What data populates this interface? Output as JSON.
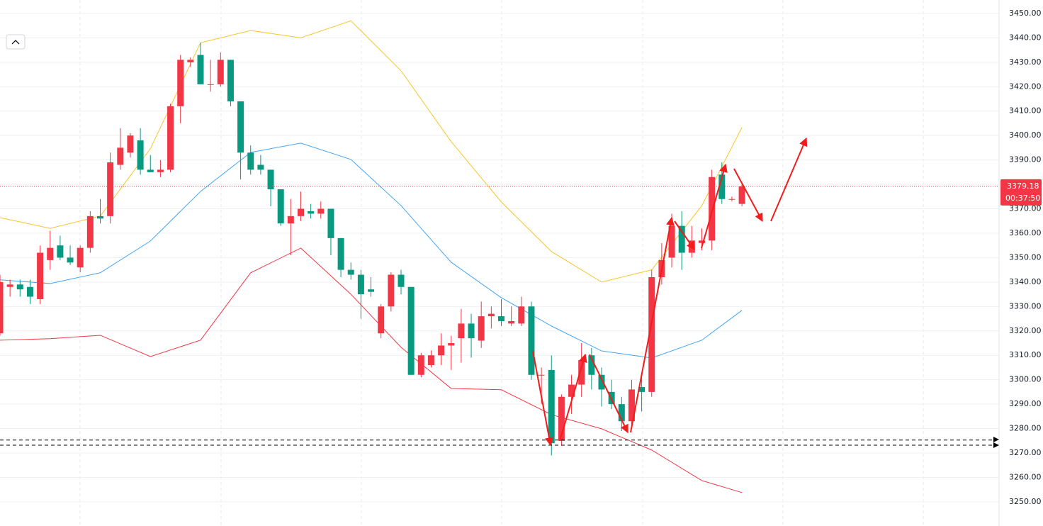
{
  "chart_data": {
    "type": "candlestick",
    "ylim": [
      3240.1,
      3455.5
    ],
    "yticks": [
      {
        "value": 3250,
        "label": "3250.00"
      },
      {
        "value": 3260,
        "label": "3260.00"
      },
      {
        "value": 3270,
        "label": "3270.00"
      },
      {
        "value": 3280,
        "label": "3280.00"
      },
      {
        "value": 3290,
        "label": "3290.00"
      },
      {
        "value": 3300,
        "label": "3300.00"
      },
      {
        "value": 3310,
        "label": "3310.00"
      },
      {
        "value": 3320,
        "label": "3320.00"
      },
      {
        "value": 3330,
        "label": "3330.00"
      },
      {
        "value": 3340,
        "label": "3340.00"
      },
      {
        "value": 3350,
        "label": "3350.00"
      },
      {
        "value": 3360,
        "label": "3360.00"
      },
      {
        "value": 3370,
        "label": "3370.00"
      },
      {
        "value": 3380,
        "label": "3380.00"
      },
      {
        "value": 3390,
        "label": "3390.00"
      },
      {
        "value": 3400,
        "label": "3400.00"
      },
      {
        "value": 3410,
        "label": "3410.00"
      },
      {
        "value": 3420,
        "label": "3420.00"
      },
      {
        "value": 3430,
        "label": "3430.00"
      },
      {
        "value": 3440,
        "label": "3440.00"
      },
      {
        "value": 3450,
        "label": "3450.00"
      }
    ],
    "up_color": "#f23645",
    "down_color": "#089981",
    "open": [
      3319,
      3338,
      3339,
      3338,
      3333,
      3349,
      3355,
      3350,
      3346,
      3354,
      3367,
      3367,
      3388,
      3393,
      3398,
      3386,
      3385,
      3386,
      3412,
      3430,
      3433,
      3421,
      3421,
      3431,
      3414,
      3393,
      3388,
      3386,
      3378,
      3364,
      3367,
      3369,
      3368,
      3370,
      3358,
      3345,
      3343,
      3337,
      3319,
      3330,
      3343,
      3338,
      3302,
      3306,
      3310,
      3314,
      3317,
      3323,
      3316,
      3326,
      3326,
      3323,
      3323,
      3330,
      3302,
      3304,
      3275,
      3293,
      3298,
      3310,
      3302,
      3295,
      3290,
      3283,
      3297,
      3295,
      3342,
      3350,
      3363,
      3352,
      3356,
      3357,
      3384,
      3374,
      3372
    ],
    "high": [
      3343,
      3341,
      3341,
      3341,
      3355,
      3361,
      3359,
      3355,
      3355,
      3369,
      3374,
      3393,
      3403,
      3401,
      3403,
      3392,
      3390,
      3413,
      3433,
      3432,
      3438,
      3431,
      3434,
      3431,
      3414,
      3396,
      3392,
      3386,
      3378,
      3374,
      3377,
      3372,
      3373,
      3370,
      3358,
      3348,
      3345,
      3342,
      3331,
      3344,
      3345,
      3338,
      3311,
      3312,
      3319,
      3318,
      3329,
      3327,
      3332,
      3330,
      3333,
      3330,
      3334,
      3332,
      3305,
      3310,
      3294,
      3302,
      3315,
      3313,
      3305,
      3300,
      3293,
      3300,
      3301,
      3345,
      3356,
      3368,
      3369,
      3363,
      3362,
      3386,
      3389,
      3375,
      3380
    ],
    "low": [
      3318,
      3334,
      3334,
      3331,
      3331,
      3345,
      3349,
      3347,
      3344,
      3352,
      3364,
      3364,
      3386,
      3391,
      3384,
      3385,
      3383,
      3385,
      3405,
      3428,
      3421,
      3418,
      3420,
      3412,
      3382,
      3384,
      3384,
      3371,
      3363,
      3351,
      3365,
      3366,
      3366,
      3351,
      3342,
      3341,
      3325,
      3334,
      3317,
      3328,
      3335,
      3302,
      3301,
      3305,
      3306,
      3304,
      3307,
      3309,
      3313,
      3321,
      3322,
      3322,
      3322,
      3300,
      3290,
      3269,
      3273,
      3286,
      3293,
      3296,
      3289,
      3288,
      3279,
      3280,
      3287,
      3293,
      3339,
      3346,
      3345,
      3350,
      3353,
      3353,
      3372,
      3373,
      3371
    ],
    "close": [
      3340,
      3339,
      3337,
      3334,
      3352,
      3354,
      3350,
      3348,
      3354,
      3367,
      3366,
      3389,
      3395,
      3400,
      3386,
      3385,
      3386,
      3412,
      3431,
      3431,
      3421,
      3421,
      3431,
      3414,
      3393,
      3386,
      3386,
      3378,
      3364,
      3367,
      3370,
      3368,
      3370,
      3358,
      3345,
      3343,
      3335,
      3336,
      3330,
      3343,
      3338,
      3302,
      3310,
      3310,
      3314,
      3315,
      3323,
      3317,
      3326,
      3327,
      3324,
      3324,
      3330,
      3302,
      3302,
      3274,
      3293,
      3298,
      3308,
      3302,
      3296,
      3290,
      3283,
      3296,
      3295,
      3342,
      3349,
      3363,
      3352,
      3357,
      3357,
      3383,
      3374,
      3374,
      3379.18
    ],
    "bands": [
      {
        "color": "#f7c52b",
        "x": [
          0,
          5,
          10,
          15,
          20,
          25,
          30,
          35,
          40,
          45,
          50,
          55,
          60,
          65,
          70,
          74
        ],
        "values": [
          3366.4,
          3362,
          3367,
          3394.6,
          3438,
          3443,
          3440,
          3447,
          3426.5,
          3397.5,
          3372.8,
          3352.5,
          3340,
          3345,
          3371.3,
          3403.3
        ]
      },
      {
        "color": "#42a5f5",
        "x": [
          0,
          5,
          10,
          15,
          20,
          25,
          30,
          35,
          40,
          45,
          50,
          55,
          60,
          65,
          70,
          74
        ],
        "values": [
          3340.9,
          3339.4,
          3343.8,
          3356.8,
          3377.1,
          3393.1,
          3396.9,
          3390.2,
          3371.3,
          3348.1,
          3333.6,
          3322,
          3311.8,
          3308.9,
          3316.2,
          3328.4
        ]
      },
      {
        "color": "#f23645",
        "x": [
          0,
          5,
          10,
          15,
          20,
          25,
          30,
          35,
          40,
          45,
          50,
          55,
          60,
          65,
          70,
          74
        ],
        "values": [
          3316.2,
          3316.8,
          3318.2,
          3309.5,
          3316.2,
          3343.8,
          3353.9,
          3335,
          3313.3,
          3296.4,
          3295.9,
          3285.7,
          3279.9,
          3271.2,
          3258.7,
          3253.8
        ]
      }
    ],
    "levels": [
      3275.3,
      3273.2
    ],
    "last_price": 3379.18,
    "countdown": "00:37:50"
  }
}
